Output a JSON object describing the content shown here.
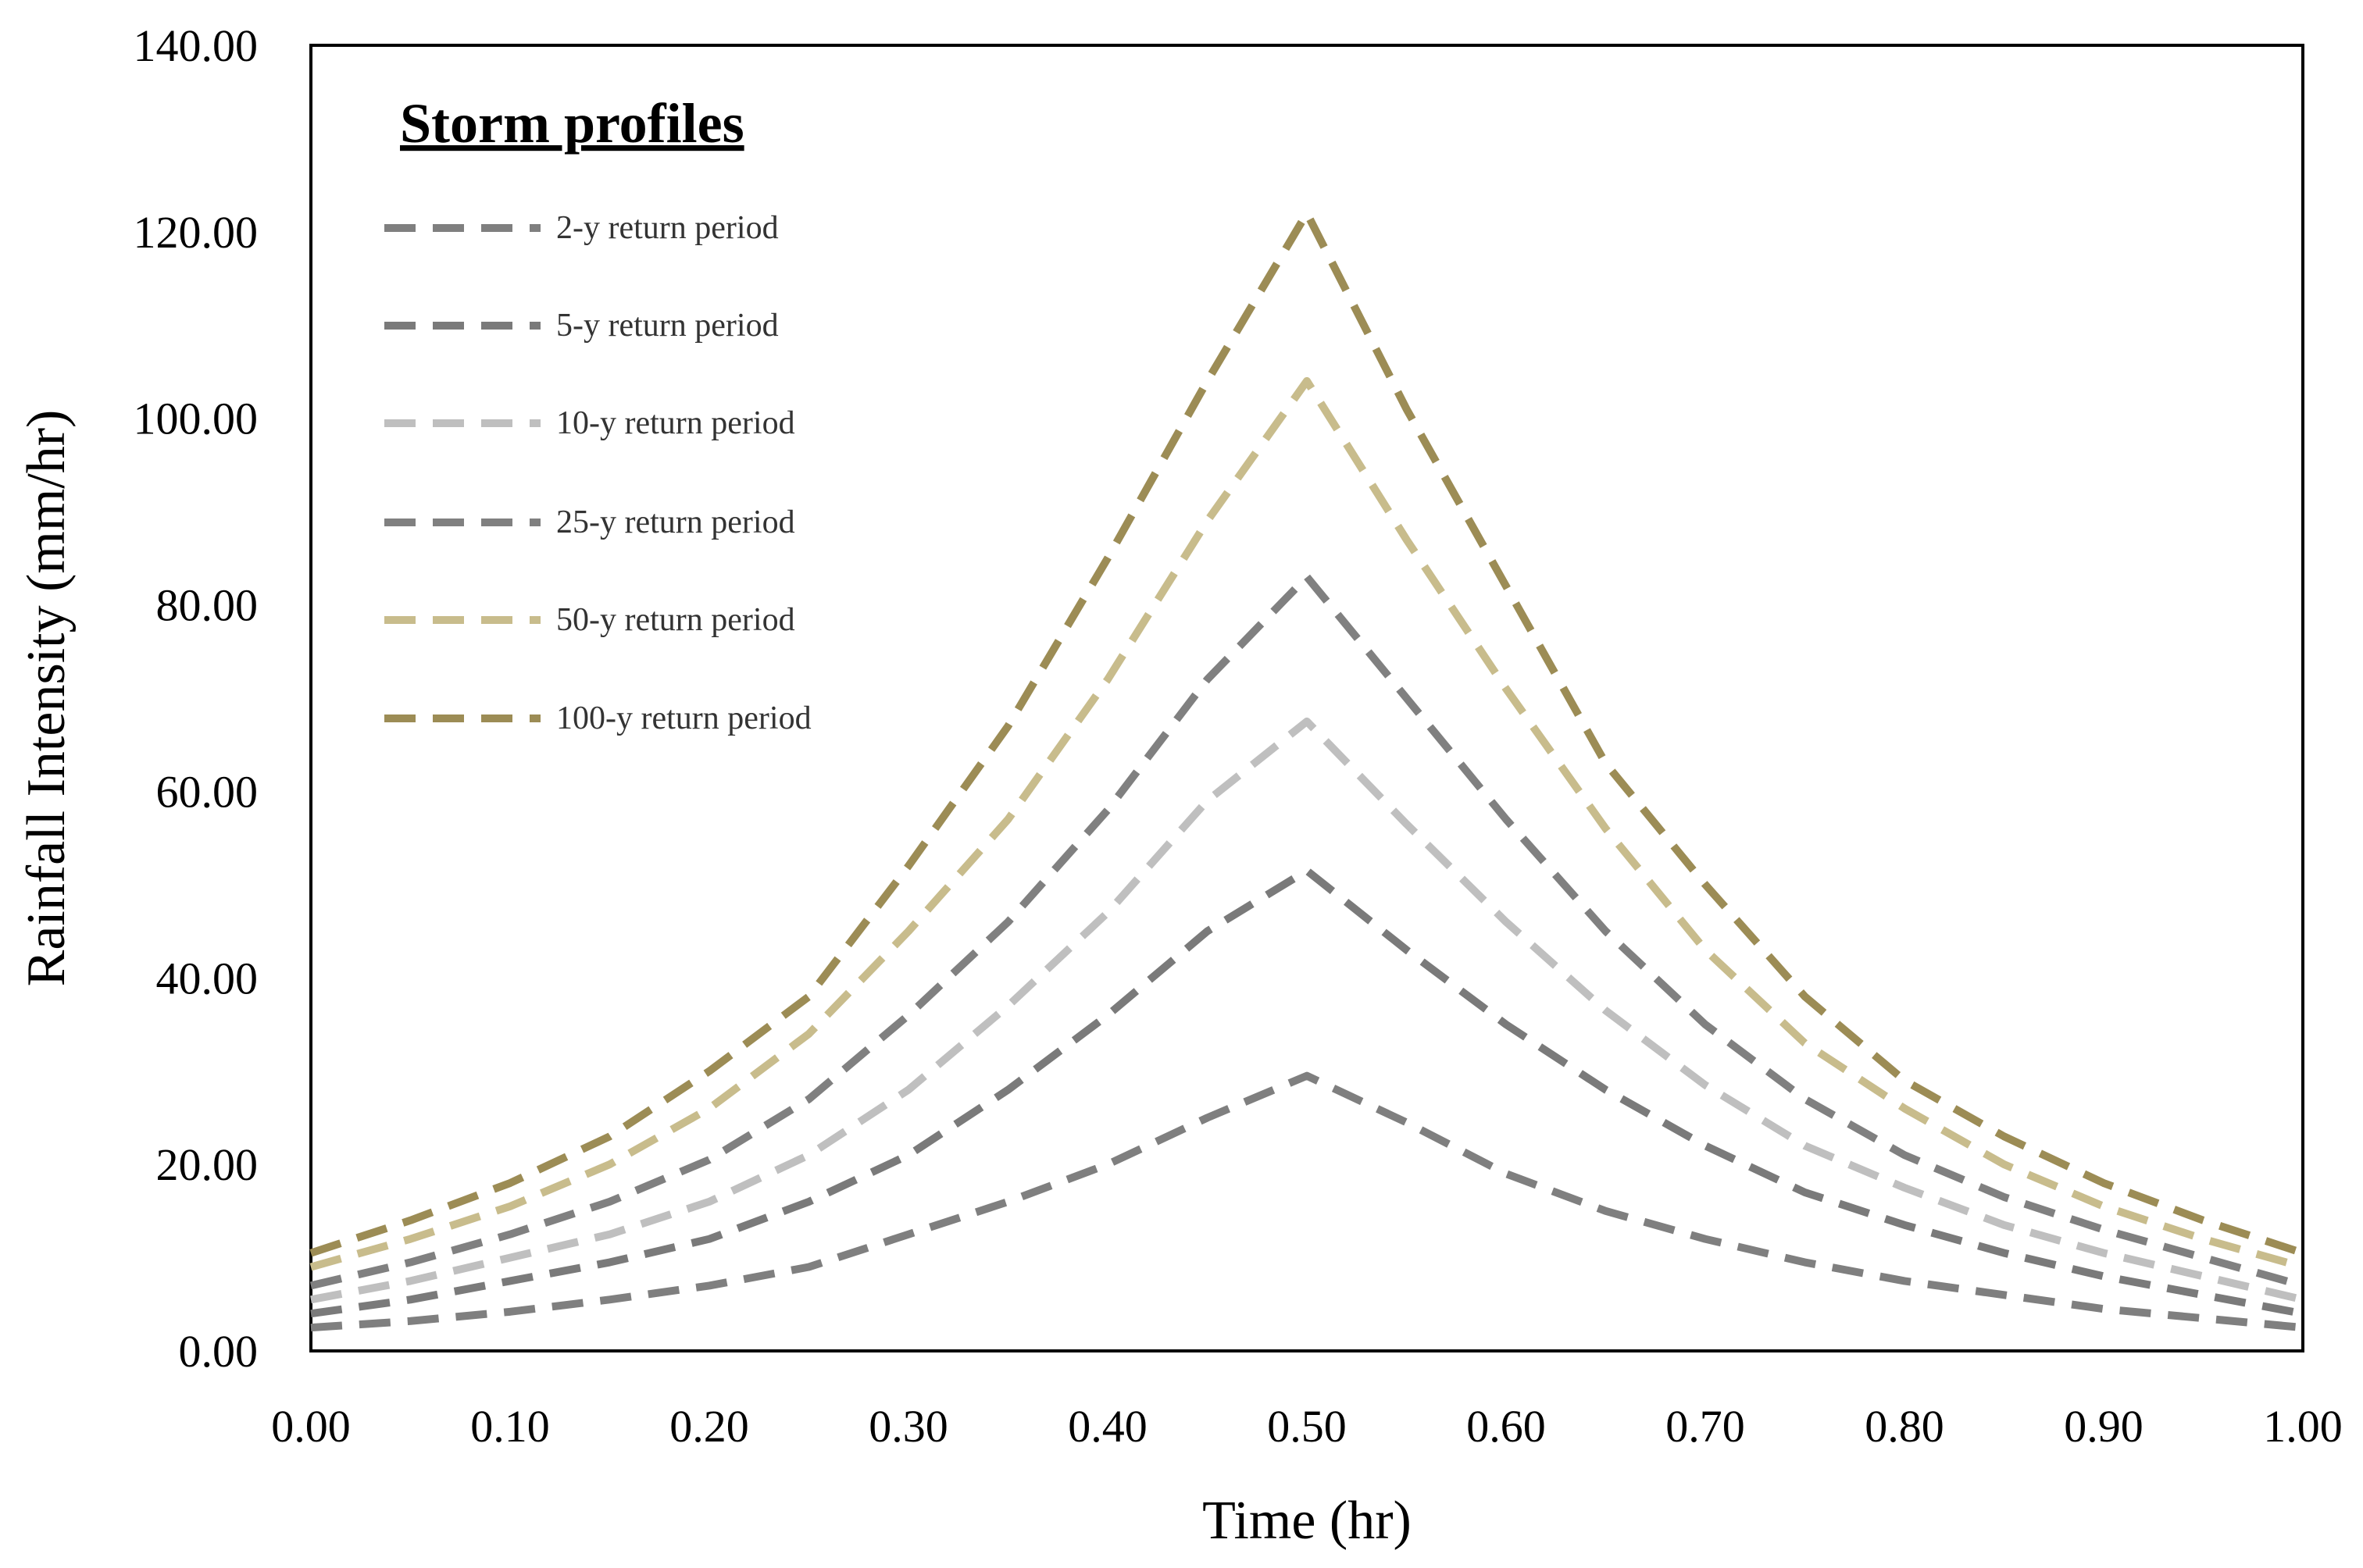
{
  "chart_data": {
    "type": "line",
    "title": "",
    "xlabel": "Time (hr)",
    "ylabel": "Rainfall Intensity (mm/hr)",
    "xlim": [
      0,
      1
    ],
    "ylim": [
      0,
      140
    ],
    "x_ticks": [
      "0.00",
      "0.10",
      "0.20",
      "0.30",
      "0.40",
      "0.50",
      "0.60",
      "0.70",
      "0.80",
      "0.90",
      "1.00"
    ],
    "y_ticks": [
      "0.00",
      "20.00",
      "40.00",
      "60.00",
      "80.00",
      "100.00",
      "120.00",
      "140.00"
    ],
    "grid": false,
    "legend": {
      "title": "Storm profiles",
      "position": "top-left"
    },
    "x": [
      0.0,
      0.05,
      0.1,
      0.15,
      0.2,
      0.25,
      0.3,
      0.35,
      0.4,
      0.45,
      0.5,
      0.55,
      0.6,
      0.65,
      0.7,
      0.75,
      0.8,
      0.85,
      0.9,
      0.95,
      1.0
    ],
    "series": [
      {
        "name": "2-y return period",
        "color": "#7f7f7f",
        "values": [
          2.5,
          3.2,
          4.2,
          5.5,
          7.0,
          9.0,
          12.5,
          16.0,
          20.0,
          25.0,
          29.5,
          24.5,
          19.0,
          15.0,
          12.0,
          9.5,
          7.5,
          6.0,
          4.5,
          3.5,
          2.5
        ]
      },
      {
        "name": "5-y return period",
        "color": "#7a7a7a",
        "values": [
          4.0,
          5.5,
          7.5,
          9.5,
          12.0,
          16.0,
          21.0,
          28.0,
          36.0,
          45.0,
          51.5,
          43.0,
          35.0,
          28.0,
          22.0,
          17.0,
          13.5,
          10.5,
          8.0,
          6.0,
          4.0
        ]
      },
      {
        "name": "10-y return period",
        "color": "#bfbfbf",
        "values": [
          5.5,
          7.5,
          10.0,
          12.5,
          16.0,
          21.0,
          28.0,
          37.0,
          47.0,
          59.0,
          67.5,
          56.5,
          46.0,
          36.5,
          28.5,
          22.0,
          17.5,
          13.5,
          10.5,
          8.0,
          5.5
        ]
      },
      {
        "name": "25-y return period",
        "color": "#808080",
        "values": [
          7.0,
          9.5,
          12.5,
          16.0,
          20.5,
          27.0,
          36.0,
          46.0,
          58.0,
          72.0,
          83.0,
          70.0,
          57.0,
          45.0,
          35.0,
          27.0,
          21.0,
          16.5,
          13.0,
          10.0,
          7.0
        ]
      },
      {
        "name": "50-y return period",
        "color": "#c8bc8c",
        "values": [
          9.0,
          12.0,
          15.5,
          20.0,
          26.0,
          34.0,
          45.0,
          57.0,
          72.0,
          89.0,
          104.0,
          87.0,
          71.0,
          56.0,
          43.0,
          33.0,
          26.0,
          20.0,
          15.5,
          12.0,
          9.0
        ]
      },
      {
        "name": "100-y return period",
        "color": "#9c8c55",
        "values": [
          10.5,
          14.0,
          18.0,
          23.0,
          30.0,
          38.0,
          52.0,
          67.0,
          85.0,
          104.0,
          122.0,
          101.0,
          82.0,
          63.0,
          50.0,
          38.0,
          29.0,
          23.0,
          18.0,
          14.0,
          10.5
        ]
      }
    ]
  }
}
